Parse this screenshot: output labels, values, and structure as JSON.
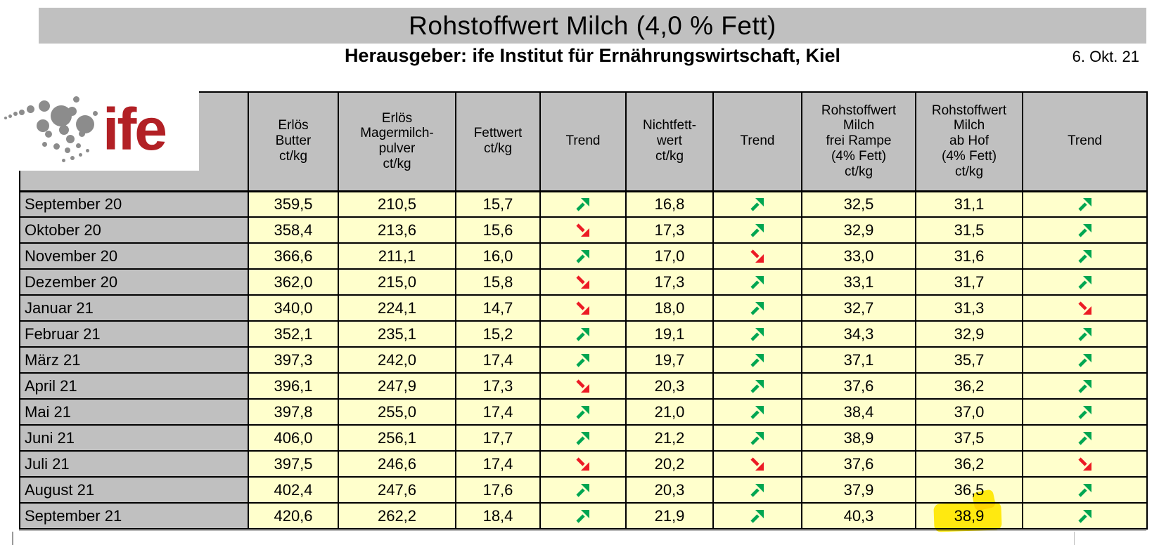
{
  "header": {
    "title": "Rohstoffwert Milch (4,0 % Fett)",
    "subtitle": "Herausgeber: ife Institut für Ernährungswirtschaft, Kiel",
    "date": "6. Okt. 21"
  },
  "logo": {
    "text": "ife",
    "text_color": "#b22025",
    "dot_color": "#8c8c8c"
  },
  "colors": {
    "title_bar_bg": "#c0c0c0",
    "header_cell_bg": "#c0c0c0",
    "label_cell_bg": "#c0c0c0",
    "data_cell_bg": "#ffffcc",
    "trend_up": "#00a651",
    "trend_down": "#ec1b24",
    "highlight": "#ffe913",
    "border": "#000000"
  },
  "chart_data": {
    "type": "table",
    "columns": [
      "",
      "Erlös\nButter\nct/kg",
      "Erlös\nMagermilch-\npulver\nct/kg",
      "Fettwert\nct/kg",
      "Trend",
      "Nichtfett-\nwert\nct/kg",
      "Trend",
      "Rohstoffwert\nMilch\nfrei Rampe\n(4% Fett)\nct/kg",
      "Rohstoffwert\nMilch\nab Hof\n(4% Fett)\nct/kg",
      "Trend"
    ],
    "rows": [
      [
        "September 20",
        "359,5",
        "210,5",
        "15,7",
        "up",
        "16,8",
        "up",
        "32,5",
        "31,1",
        "up"
      ],
      [
        "Oktober 20",
        "358,4",
        "213,6",
        "15,6",
        "down",
        "17,3",
        "up",
        "32,9",
        "31,5",
        "up"
      ],
      [
        "November 20",
        "366,6",
        "211,1",
        "16,0",
        "up",
        "17,0",
        "down",
        "33,0",
        "31,6",
        "up"
      ],
      [
        "Dezember 20",
        "362,0",
        "215,0",
        "15,8",
        "down",
        "17,3",
        "up",
        "33,1",
        "31,7",
        "up"
      ],
      [
        "Januar 21",
        "340,0",
        "224,1",
        "14,7",
        "down",
        "18,0",
        "up",
        "32,7",
        "31,3",
        "down"
      ],
      [
        "Februar 21",
        "352,1",
        "235,1",
        "15,2",
        "up",
        "19,1",
        "up",
        "34,3",
        "32,9",
        "up"
      ],
      [
        "März 21",
        "397,3",
        "242,0",
        "17,4",
        "up",
        "19,7",
        "up",
        "37,1",
        "35,7",
        "up"
      ],
      [
        "April 21",
        "396,1",
        "247,9",
        "17,3",
        "down",
        "20,3",
        "up",
        "37,6",
        "36,2",
        "up"
      ],
      [
        "Mai 21",
        "397,8",
        "255,0",
        "17,4",
        "up",
        "21,0",
        "up",
        "38,4",
        "37,0",
        "up"
      ],
      [
        "Juni 21",
        "406,0",
        "256,1",
        "17,7",
        "up",
        "21,2",
        "up",
        "38,9",
        "37,5",
        "up"
      ],
      [
        "Juli 21",
        "397,5",
        "246,6",
        "17,4",
        "down",
        "20,2",
        "down",
        "37,6",
        "36,2",
        "down"
      ],
      [
        "August 21",
        "402,4",
        "247,6",
        "17,6",
        "up",
        "20,3",
        "up",
        "37,9",
        "36,5",
        "up"
      ],
      [
        "September 21",
        "420,6",
        "262,2",
        "18,4",
        "up",
        "21,9",
        "up",
        "40,3",
        "38,9",
        "up"
      ]
    ],
    "highlight": {
      "row_index": 12,
      "col_index": 8,
      "row_label": "September 21",
      "column": "Rohstoffwert Milch ab Hof (4% Fett) ct/kg",
      "value": "38,9"
    }
  }
}
